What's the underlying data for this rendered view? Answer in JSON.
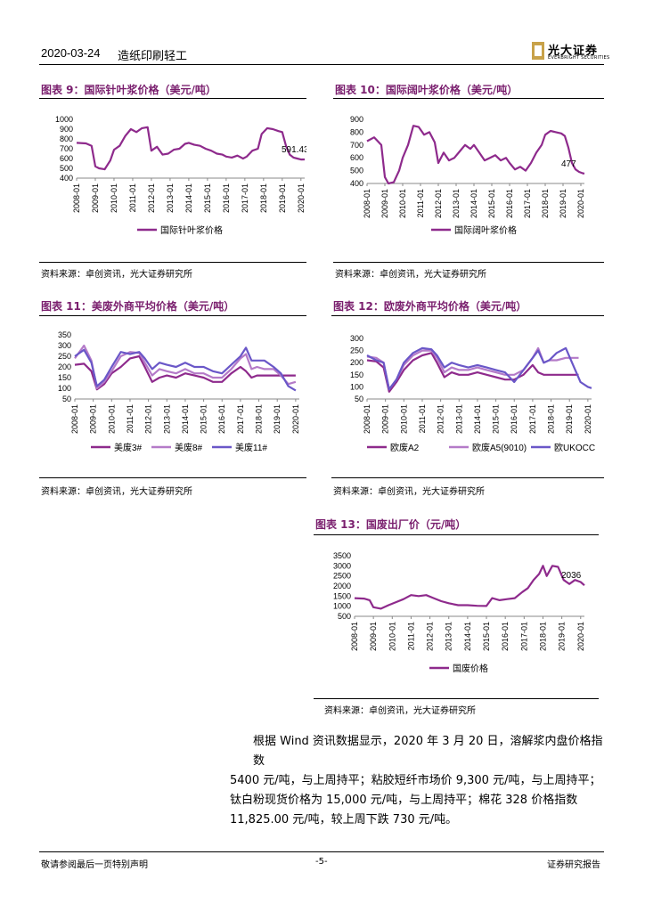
{
  "header": {
    "date": "2020-03-24",
    "sector": "造纸印刷轻工",
    "logo_cn": "光大证券",
    "logo_en": "EVERBRIGHT SECURITIES"
  },
  "charts": [
    {
      "title": "图表 9：国际针叶浆价格（美元/吨）",
      "source": "资料来源：卓创资讯，光大证券研究所"
    },
    {
      "title": "图表 10：国际阔叶浆价格（美元/吨）",
      "source": "资料来源：卓创资讯，光大证券研究所"
    },
    {
      "title": "图表 11：美废外商平均价格（美元/吨）",
      "source": "资料来源：卓创资讯，光大证券研究所"
    },
    {
      "title": "图表 12：欧废外商平均价格（美元/吨）",
      "source": "资料来源：卓创资讯，光大证券研究所"
    },
    {
      "title": "图表 13：国废出厂价（元/吨）",
      "source": "资料来源：卓创资讯，光大证券研究所"
    }
  ],
  "chart_data": [
    {
      "type": "line",
      "x_ticks": [
        "2008-01",
        "2009-01",
        "2010-01",
        "2011-01",
        "2012-01",
        "2013-01",
        "2014-01",
        "2015-01",
        "2016-01",
        "2017-01",
        "2018-01",
        "2019-01",
        "2020-01"
      ],
      "y_ticks": [
        400,
        500,
        600,
        700,
        800,
        900,
        1000
      ],
      "ylim": [
        400,
        1000
      ],
      "annotation": "591.43",
      "series": [
        {
          "name": "国际针叶浆价格",
          "color": "#8e2a8c",
          "x": [
            2008.0,
            2008.5,
            2008.8,
            2009.0,
            2009.2,
            2009.5,
            2009.8,
            2010.0,
            2010.3,
            2010.6,
            2010.9,
            2011.2,
            2011.5,
            2011.8,
            2012.0,
            2012.3,
            2012.6,
            2012.9,
            2013.2,
            2013.5,
            2013.8,
            2014.0,
            2014.3,
            2014.6,
            2014.9,
            2015.2,
            2015.5,
            2015.8,
            2016.0,
            2016.3,
            2016.6,
            2016.9,
            2017.1,
            2017.4,
            2017.7,
            2017.9,
            2018.2,
            2018.5,
            2018.8,
            2019.0,
            2019.2,
            2019.4,
            2019.6,
            2019.8,
            2020.0,
            2020.2
          ],
          "y": [
            760,
            755,
            730,
            520,
            500,
            490,
            580,
            690,
            730,
            830,
            900,
            870,
            910,
            920,
            680,
            720,
            640,
            650,
            690,
            700,
            750,
            760,
            740,
            730,
            700,
            680,
            650,
            640,
            620,
            610,
            630,
            600,
            620,
            680,
            700,
            850,
            910,
            900,
            880,
            870,
            730,
            640,
            610,
            600,
            590,
            591
          ]
        }
      ]
    },
    {
      "type": "line",
      "x_ticks": [
        "2008-01",
        "2009-01",
        "2010-01",
        "2011-01",
        "2012-01",
        "2013-01",
        "2014-01",
        "2015-01",
        "2016-01",
        "2017-01",
        "2018-01",
        "2019-01",
        "2020-01"
      ],
      "y_ticks": [
        400,
        500,
        600,
        700,
        800,
        900
      ],
      "ylim": [
        400,
        900
      ],
      "annotation": "477",
      "series": [
        {
          "name": "国际阔叶浆价格",
          "color": "#8e2a8c",
          "x": [
            2008.0,
            2008.4,
            2008.8,
            2009.0,
            2009.2,
            2009.5,
            2009.8,
            2010.0,
            2010.3,
            2010.6,
            2010.9,
            2011.2,
            2011.5,
            2011.8,
            2012.0,
            2012.3,
            2012.6,
            2012.9,
            2013.2,
            2013.5,
            2013.8,
            2014.0,
            2014.3,
            2014.6,
            2014.9,
            2015.2,
            2015.5,
            2015.8,
            2016.0,
            2016.3,
            2016.6,
            2016.9,
            2017.2,
            2017.5,
            2017.8,
            2018.0,
            2018.3,
            2018.6,
            2018.9,
            2019.1,
            2019.3,
            2019.5,
            2019.7,
            2019.9,
            2020.1,
            2020.2
          ],
          "y": [
            730,
            760,
            700,
            450,
            400,
            410,
            500,
            600,
            700,
            850,
            840,
            780,
            800,
            720,
            560,
            640,
            580,
            600,
            650,
            700,
            670,
            700,
            640,
            580,
            600,
            620,
            580,
            600,
            560,
            510,
            530,
            500,
            560,
            640,
            700,
            780,
            810,
            800,
            790,
            770,
            680,
            560,
            510,
            490,
            480,
            477
          ]
        }
      ]
    },
    {
      "type": "line",
      "x_ticks": [
        "2008-01",
        "2009-01",
        "2010-01",
        "2011-01",
        "2012-01",
        "2013-01",
        "2014-01",
        "2015-01",
        "2016-01",
        "2017-01",
        "2018-01",
        "2019-01",
        "2020-01"
      ],
      "y_ticks": [
        50,
        100,
        150,
        200,
        250,
        300,
        350
      ],
      "ylim": [
        50,
        350
      ],
      "series": [
        {
          "name": "美废3#",
          "color": "#8e2a8c",
          "x": [
            2008.0,
            2008.5,
            2008.9,
            2009.2,
            2009.6,
            2010.0,
            2010.5,
            2011.0,
            2011.5,
            2011.8,
            2012.2,
            2012.6,
            2013.0,
            2013.5,
            2014.0,
            2014.5,
            2015.0,
            2015.5,
            2016.0,
            2016.5,
            2017.0,
            2017.3,
            2017.6,
            2017.9,
            2018.3,
            2018.8,
            2019.2,
            2019.6,
            2020.0
          ],
          "y": [
            210,
            215,
            180,
            95,
            120,
            170,
            200,
            240,
            250,
            200,
            130,
            150,
            160,
            150,
            170,
            160,
            150,
            130,
            130,
            170,
            200,
            180,
            150,
            160,
            160,
            160,
            160,
            160,
            160
          ]
        },
        {
          "name": "美废8#",
          "color": "#b47ac8",
          "x": [
            2008.0,
            2008.5,
            2008.9,
            2009.2,
            2009.6,
            2010.0,
            2010.5,
            2011.0,
            2011.5,
            2011.8,
            2012.2,
            2012.6,
            2013.0,
            2013.5,
            2014.0,
            2014.5,
            2015.0,
            2015.5,
            2016.0,
            2016.5,
            2017.0,
            2017.3,
            2017.6,
            2017.9,
            2018.3,
            2018.8,
            2019.2,
            2019.6,
            2020.0
          ],
          "y": [
            240,
            300,
            230,
            100,
            130,
            180,
            250,
            270,
            265,
            220,
            160,
            190,
            180,
            170,
            190,
            170,
            170,
            150,
            150,
            190,
            240,
            260,
            190,
            200,
            190,
            190,
            160,
            120,
            130
          ]
        },
        {
          "name": "美废11#",
          "color": "#6a57c8",
          "x": [
            2008.0,
            2008.5,
            2008.9,
            2009.2,
            2009.6,
            2010.0,
            2010.5,
            2011.0,
            2011.5,
            2011.8,
            2012.2,
            2012.6,
            2013.0,
            2013.5,
            2014.0,
            2014.5,
            2015.0,
            2015.5,
            2016.0,
            2016.5,
            2017.0,
            2017.3,
            2017.6,
            2017.9,
            2018.3,
            2018.8,
            2019.2,
            2019.6,
            2020.0
          ],
          "y": [
            250,
            280,
            220,
            110,
            140,
            200,
            270,
            260,
            270,
            240,
            190,
            220,
            210,
            200,
            220,
            200,
            200,
            180,
            170,
            210,
            250,
            290,
            230,
            230,
            230,
            200,
            170,
            110,
            90
          ]
        }
      ]
    },
    {
      "type": "line",
      "x_ticks": [
        "2008-01",
        "2009-01",
        "2010-01",
        "2011-01",
        "2012-01",
        "2013-01",
        "2014-01",
        "2015-01",
        "2016-01",
        "2017-01",
        "2018-01",
        "2019-01",
        "2020-01"
      ],
      "y_ticks": [
        50,
        100,
        150,
        200,
        250,
        300
      ],
      "ylim": [
        50,
        300
      ],
      "series": [
        {
          "name": "欧废A2",
          "color": "#8e2a8c",
          "x": [
            2008.0,
            2008.5,
            2008.9,
            2009.2,
            2009.6,
            2010.0,
            2010.5,
            2011.0,
            2011.5,
            2011.8,
            2012.2,
            2012.6,
            2013.0,
            2013.5,
            2014.0,
            2014.5,
            2015.0,
            2015.5,
            2016.0,
            2016.5,
            2017.0,
            2017.3,
            2017.6,
            2017.9,
            2018.3,
            2018.8,
            2019.2,
            2019.5
          ],
          "y": [
            210,
            205,
            180,
            80,
            120,
            170,
            210,
            230,
            240,
            200,
            140,
            160,
            150,
            150,
            160,
            150,
            140,
            130,
            130,
            150,
            190,
            160,
            150,
            150,
            150,
            150,
            150,
            150
          ]
        },
        {
          "name": "欧废A5(9010)",
          "color": "#b47ac8",
          "x": [
            2008.0,
            2008.5,
            2008.9,
            2009.2,
            2009.6,
            2010.0,
            2010.5,
            2011.0,
            2011.5,
            2011.8,
            2012.2,
            2012.6,
            2013.0,
            2013.5,
            2014.0,
            2014.5,
            2015.0,
            2015.5,
            2016.0,
            2016.5,
            2017.0,
            2017.3,
            2017.6,
            2017.9,
            2018.3,
            2018.8,
            2019.2,
            2019.5
          ],
          "y": [
            225,
            220,
            200,
            90,
            130,
            190,
            230,
            250,
            250,
            220,
            160,
            180,
            170,
            170,
            180,
            170,
            160,
            150,
            150,
            170,
            220,
            260,
            200,
            210,
            210,
            220,
            220,
            220
          ]
        },
        {
          "name": "欧UKOCC",
          "color": "#6a57c8",
          "x": [
            2008.0,
            2008.5,
            2008.9,
            2009.2,
            2009.6,
            2010.0,
            2010.5,
            2011.0,
            2011.5,
            2011.8,
            2012.2,
            2012.6,
            2013.0,
            2013.5,
            2014.0,
            2014.5,
            2015.0,
            2015.5,
            2016.0,
            2016.5,
            2017.0,
            2017.3,
            2017.6,
            2017.9,
            2018.3,
            2018.8,
            2019.2,
            2019.6,
            2020.0,
            2020.2
          ],
          "y": [
            230,
            210,
            200,
            90,
            130,
            200,
            240,
            260,
            255,
            230,
            180,
            200,
            190,
            180,
            190,
            180,
            170,
            160,
            120,
            170,
            220,
            250,
            200,
            210,
            240,
            260,
            190,
            120,
            100,
            95
          ]
        }
      ]
    },
    {
      "type": "line",
      "x_ticks": [
        "2008-01",
        "2009-01",
        "2010-01",
        "2011-01",
        "2012-01",
        "2013-01",
        "2014-01",
        "2015-01",
        "2016-01",
        "2017-01",
        "2018-01",
        "2019-01",
        "2020-01"
      ],
      "y_ticks": [
        500,
        1000,
        1500,
        2000,
        2500,
        3000,
        3500
      ],
      "ylim": [
        500,
        3500
      ],
      "annotation": "2036",
      "series": [
        {
          "name": "国废价格",
          "color": "#8e2a8c",
          "x": [
            2008.0,
            2008.5,
            2008.8,
            2009.0,
            2009.4,
            2009.8,
            2010.2,
            2010.6,
            2011.0,
            2011.4,
            2011.8,
            2012.2,
            2012.6,
            2013.0,
            2013.5,
            2014.0,
            2014.5,
            2015.0,
            2015.3,
            2015.7,
            2016.1,
            2016.5,
            2016.9,
            2017.2,
            2017.5,
            2017.8,
            2018.0,
            2018.2,
            2018.5,
            2018.8,
            2019.1,
            2019.4,
            2019.7,
            2020.0,
            2020.2
          ],
          "y": [
            1400,
            1380,
            1300,
            950,
            880,
            1050,
            1200,
            1350,
            1550,
            1500,
            1550,
            1400,
            1250,
            1150,
            1050,
            1050,
            1020,
            1010,
            1400,
            1300,
            1350,
            1400,
            1700,
            1900,
            2300,
            2600,
            3000,
            2500,
            3000,
            2950,
            2300,
            2100,
            2300,
            2200,
            2036
          ]
        }
      ]
    }
  ],
  "paragraph_lines": [
    "根据 Wind 资讯数据显示，2020 年 3 月 20 日，溶解浆内盘价格指数",
    "5400 元/吨，与上周持平；粘胶短纤市场价 9,300 元/吨，与上周持平；",
    "钛白粉现货价格为 15,000 元/吨，与上周持平；棉花 328 价格指数",
    "11,825.00 元/吨，较上周下跌 730 元/吨。"
  ],
  "footer": {
    "left": "敬请参阅最后一页特别声明",
    "center": "-5-",
    "right": "证券研究报告"
  }
}
